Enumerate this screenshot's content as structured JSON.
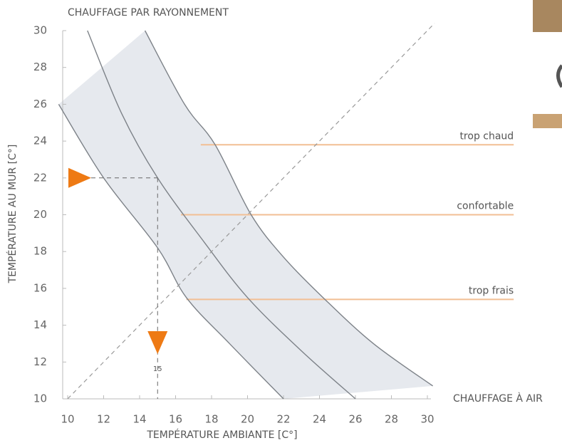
{
  "chart_data": {
    "type": "line",
    "title": "CHAUFFAGE PAR RAYONNEMENT",
    "x_label": "TEMPÉRATURE AMBIANTE [C°]",
    "y_label": "TEMPÉRATURE AU MUR [C°]",
    "side_label": "CHAUFFAGE À AIR",
    "xlim": [
      10,
      30
    ],
    "ylim": [
      10,
      30
    ],
    "xticks": [
      10,
      12,
      14,
      16,
      18,
      20,
      22,
      24,
      26,
      28,
      30
    ],
    "yticks": [
      10,
      12,
      14,
      16,
      18,
      20,
      22,
      24,
      26,
      28,
      30
    ],
    "zone_color": "#e6e9ee",
    "series": [
      {
        "color": "#7d8288",
        "x": [
          9.5,
          12,
          15,
          16.6,
          19,
          22
        ],
        "values": [
          26,
          22,
          18.2,
          15.5,
          13,
          10
        ]
      },
      {
        "color": "#7d8288",
        "x": [
          11.1,
          13,
          15,
          17.6,
          20,
          23,
          26
        ],
        "values": [
          30,
          25.5,
          22,
          18.5,
          15.5,
          12.6,
          10
        ]
      },
      {
        "color": "#7d8288",
        "x": [
          14.3,
          16.5,
          18.2,
          20.2,
          22,
          24.2,
          27,
          30.3
        ],
        "values": [
          30,
          26,
          23.8,
          20,
          17.7,
          15.5,
          13,
          10.7
        ]
      },
      {
        "color": "#999999",
        "dashed": true,
        "x": [
          10,
          30.4
        ],
        "values": [
          10,
          30.4
        ]
      }
    ],
    "annotations": [
      {
        "label": "trop chaud",
        "y": 23.8,
        "x": [
          17.4,
          34.8
        ],
        "color": "#f2bf94"
      },
      {
        "label": "confortable",
        "y": 20,
        "x": [
          16.3,
          34.8
        ],
        "color": "#f2bf94"
      },
      {
        "label": "trop frais",
        "y": 15.4,
        "x": [
          16.6,
          34.8
        ],
        "color": "#f2bf94"
      }
    ],
    "marker": {
      "x": 15,
      "y": 22,
      "color": "#ee7a14"
    }
  }
}
